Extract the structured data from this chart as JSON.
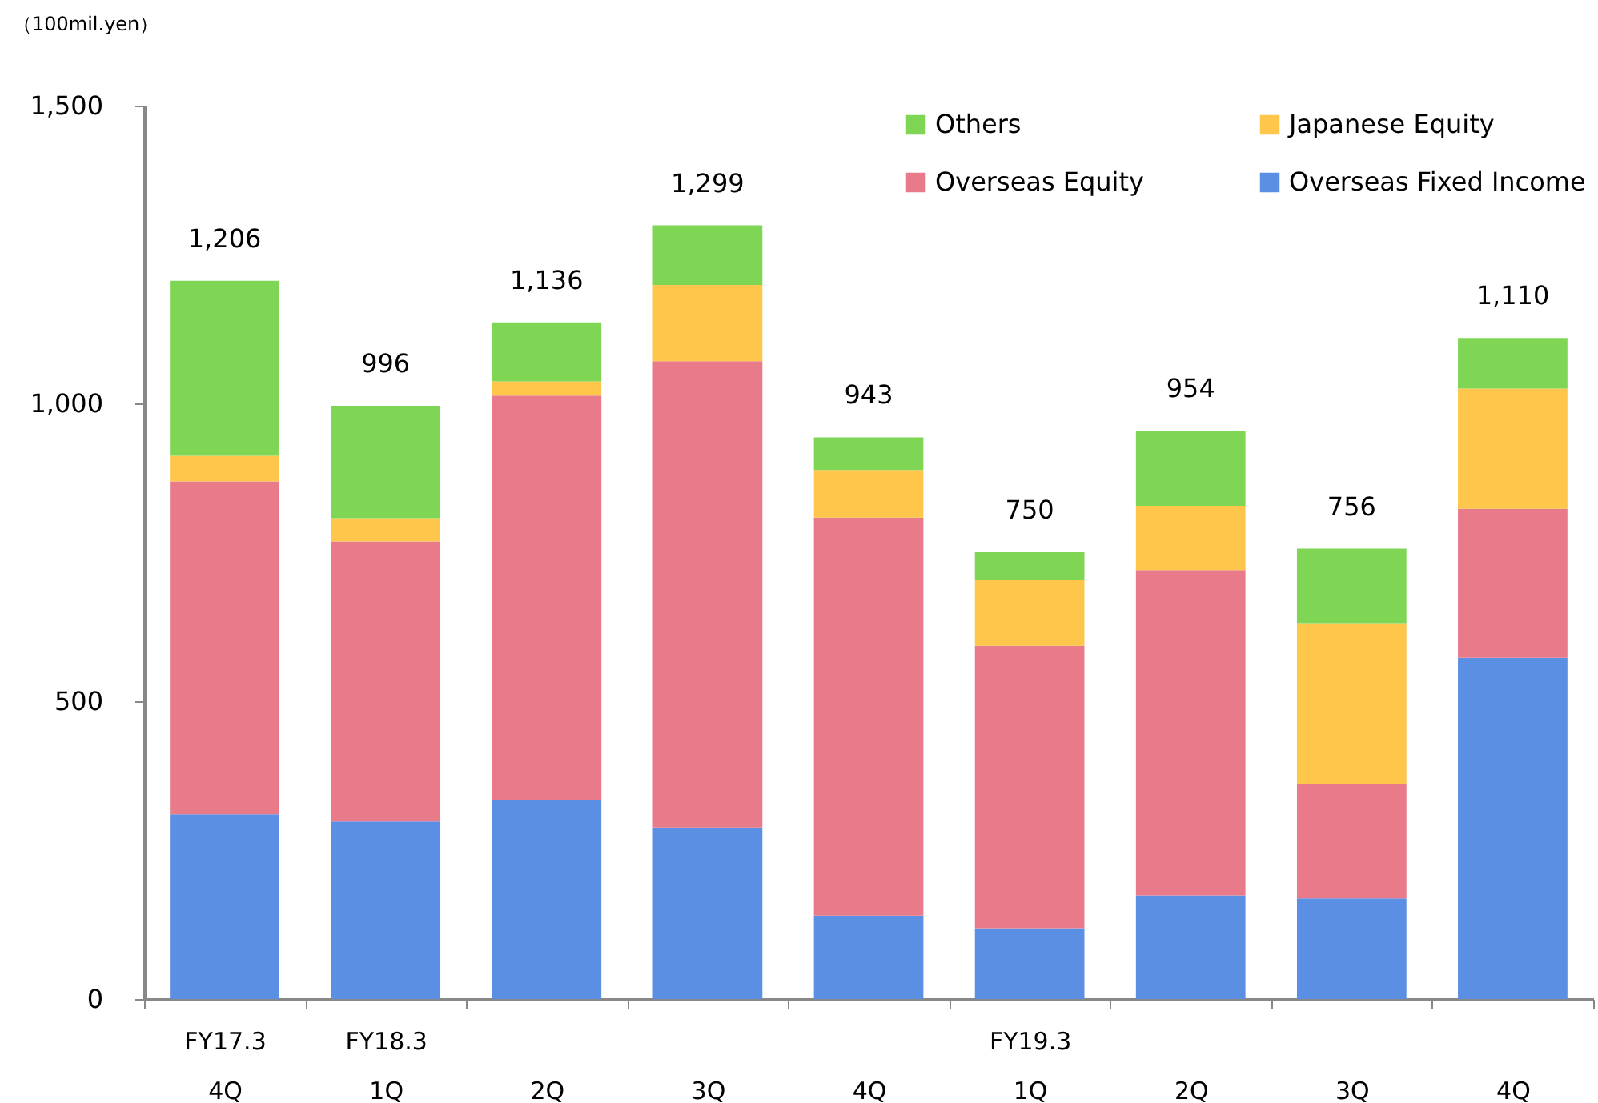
{
  "chart_data": {
    "type": "bar",
    "stacked": true,
    "ylabel": "（100mil.yen）",
    "categories": [
      "FY17.3\n4Q",
      "FY18.3\n1Q",
      "2Q",
      "3Q",
      "4Q",
      "FY19.3\n1Q",
      "2Q",
      "3Q",
      "4Q"
    ],
    "series": [
      {
        "name": "Overseas Fixed Income",
        "color": "#5b8fe3",
        "values": [
          310,
          298,
          334,
          288,
          140,
          119,
          174,
          169,
          573
        ]
      },
      {
        "name": "Overseas Equity",
        "color": "#e97a8a",
        "values": [
          559,
          470,
          679,
          783,
          668,
          474,
          546,
          192,
          250
        ]
      },
      {
        "name": "Japanese Equity",
        "color": "#fec64a",
        "values": [
          43,
          39,
          24,
          128,
          80,
          110,
          108,
          270,
          202
        ]
      },
      {
        "name": "Others",
        "color": "#7fd655",
        "values": [
          294,
          189,
          99,
          100,
          55,
          47,
          126,
          125,
          85
        ]
      }
    ],
    "totals": [
      "1,206",
      "996",
      "1,136",
      "1,299",
      "943",
      "750",
      "954",
      "756",
      "1,110"
    ],
    "ylim": [
      0,
      1500
    ],
    "yticks": [
      0,
      500,
      {
        "value": 1000,
        "label": "1,000"
      },
      {
        "value": 1500,
        "label": "1,500"
      }
    ],
    "grid": false,
    "legend": "top right"
  }
}
